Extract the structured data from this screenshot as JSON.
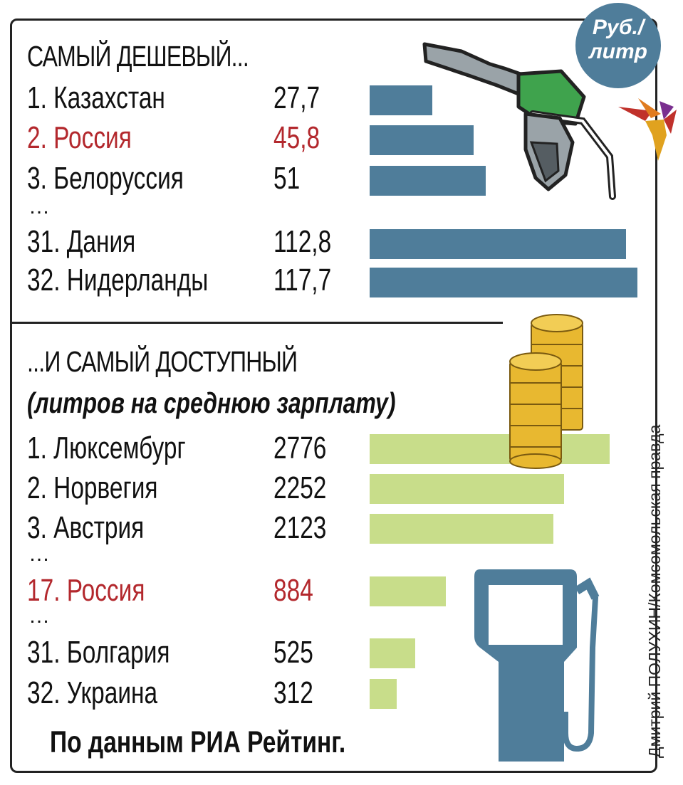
{
  "badge": {
    "line1": "Руб./",
    "line2": "литр"
  },
  "credit": "Дмитрий ПОЛУХИН/Комсомольская правда",
  "footer": "По данным РИА Рейтинг.",
  "colors": {
    "price_bar": "#4f7d9a",
    "affordability_bar": "#c8dd8a",
    "highlight": "#b3282d"
  },
  "chart_data": [
    {
      "type": "bar",
      "orientation": "horizontal",
      "title": "САМЫЙ ДЕШЕВЫЙ...",
      "unit": "Руб./литр",
      "xlim": [
        0,
        117.7
      ],
      "categories": [
        "1. Казахстан",
        "2. Россия",
        "3. Белоруссия",
        "31. Дания",
        "32. Нидерланды"
      ],
      "value_labels": [
        "27,7",
        "45,8",
        "51",
        "112,8",
        "117,7"
      ],
      "values": [
        27.7,
        45.8,
        51,
        112.8,
        117.7
      ],
      "highlight": [
        false,
        true,
        false,
        false,
        false
      ],
      "gap_after": [
        false,
        false,
        true,
        false,
        false
      ]
    },
    {
      "type": "bar",
      "orientation": "horizontal",
      "title": "...И САМЫЙ ДОСТУПНЫЙ",
      "subtitle": "(литров на среднюю зарплату)",
      "xlim": [
        0,
        2776
      ],
      "categories": [
        "1. Люксембург",
        "2. Норвегия",
        "3. Австрия",
        "17. Россия",
        "31. Болгария",
        "32. Украина"
      ],
      "value_labels": [
        "2776",
        "2252",
        "2123",
        "884",
        "525",
        "312"
      ],
      "values": [
        2776,
        2252,
        2123,
        884,
        525,
        312
      ],
      "highlight": [
        false,
        false,
        false,
        true,
        false,
        false
      ],
      "gap_after": [
        false,
        false,
        true,
        true,
        false,
        false
      ]
    }
  ]
}
